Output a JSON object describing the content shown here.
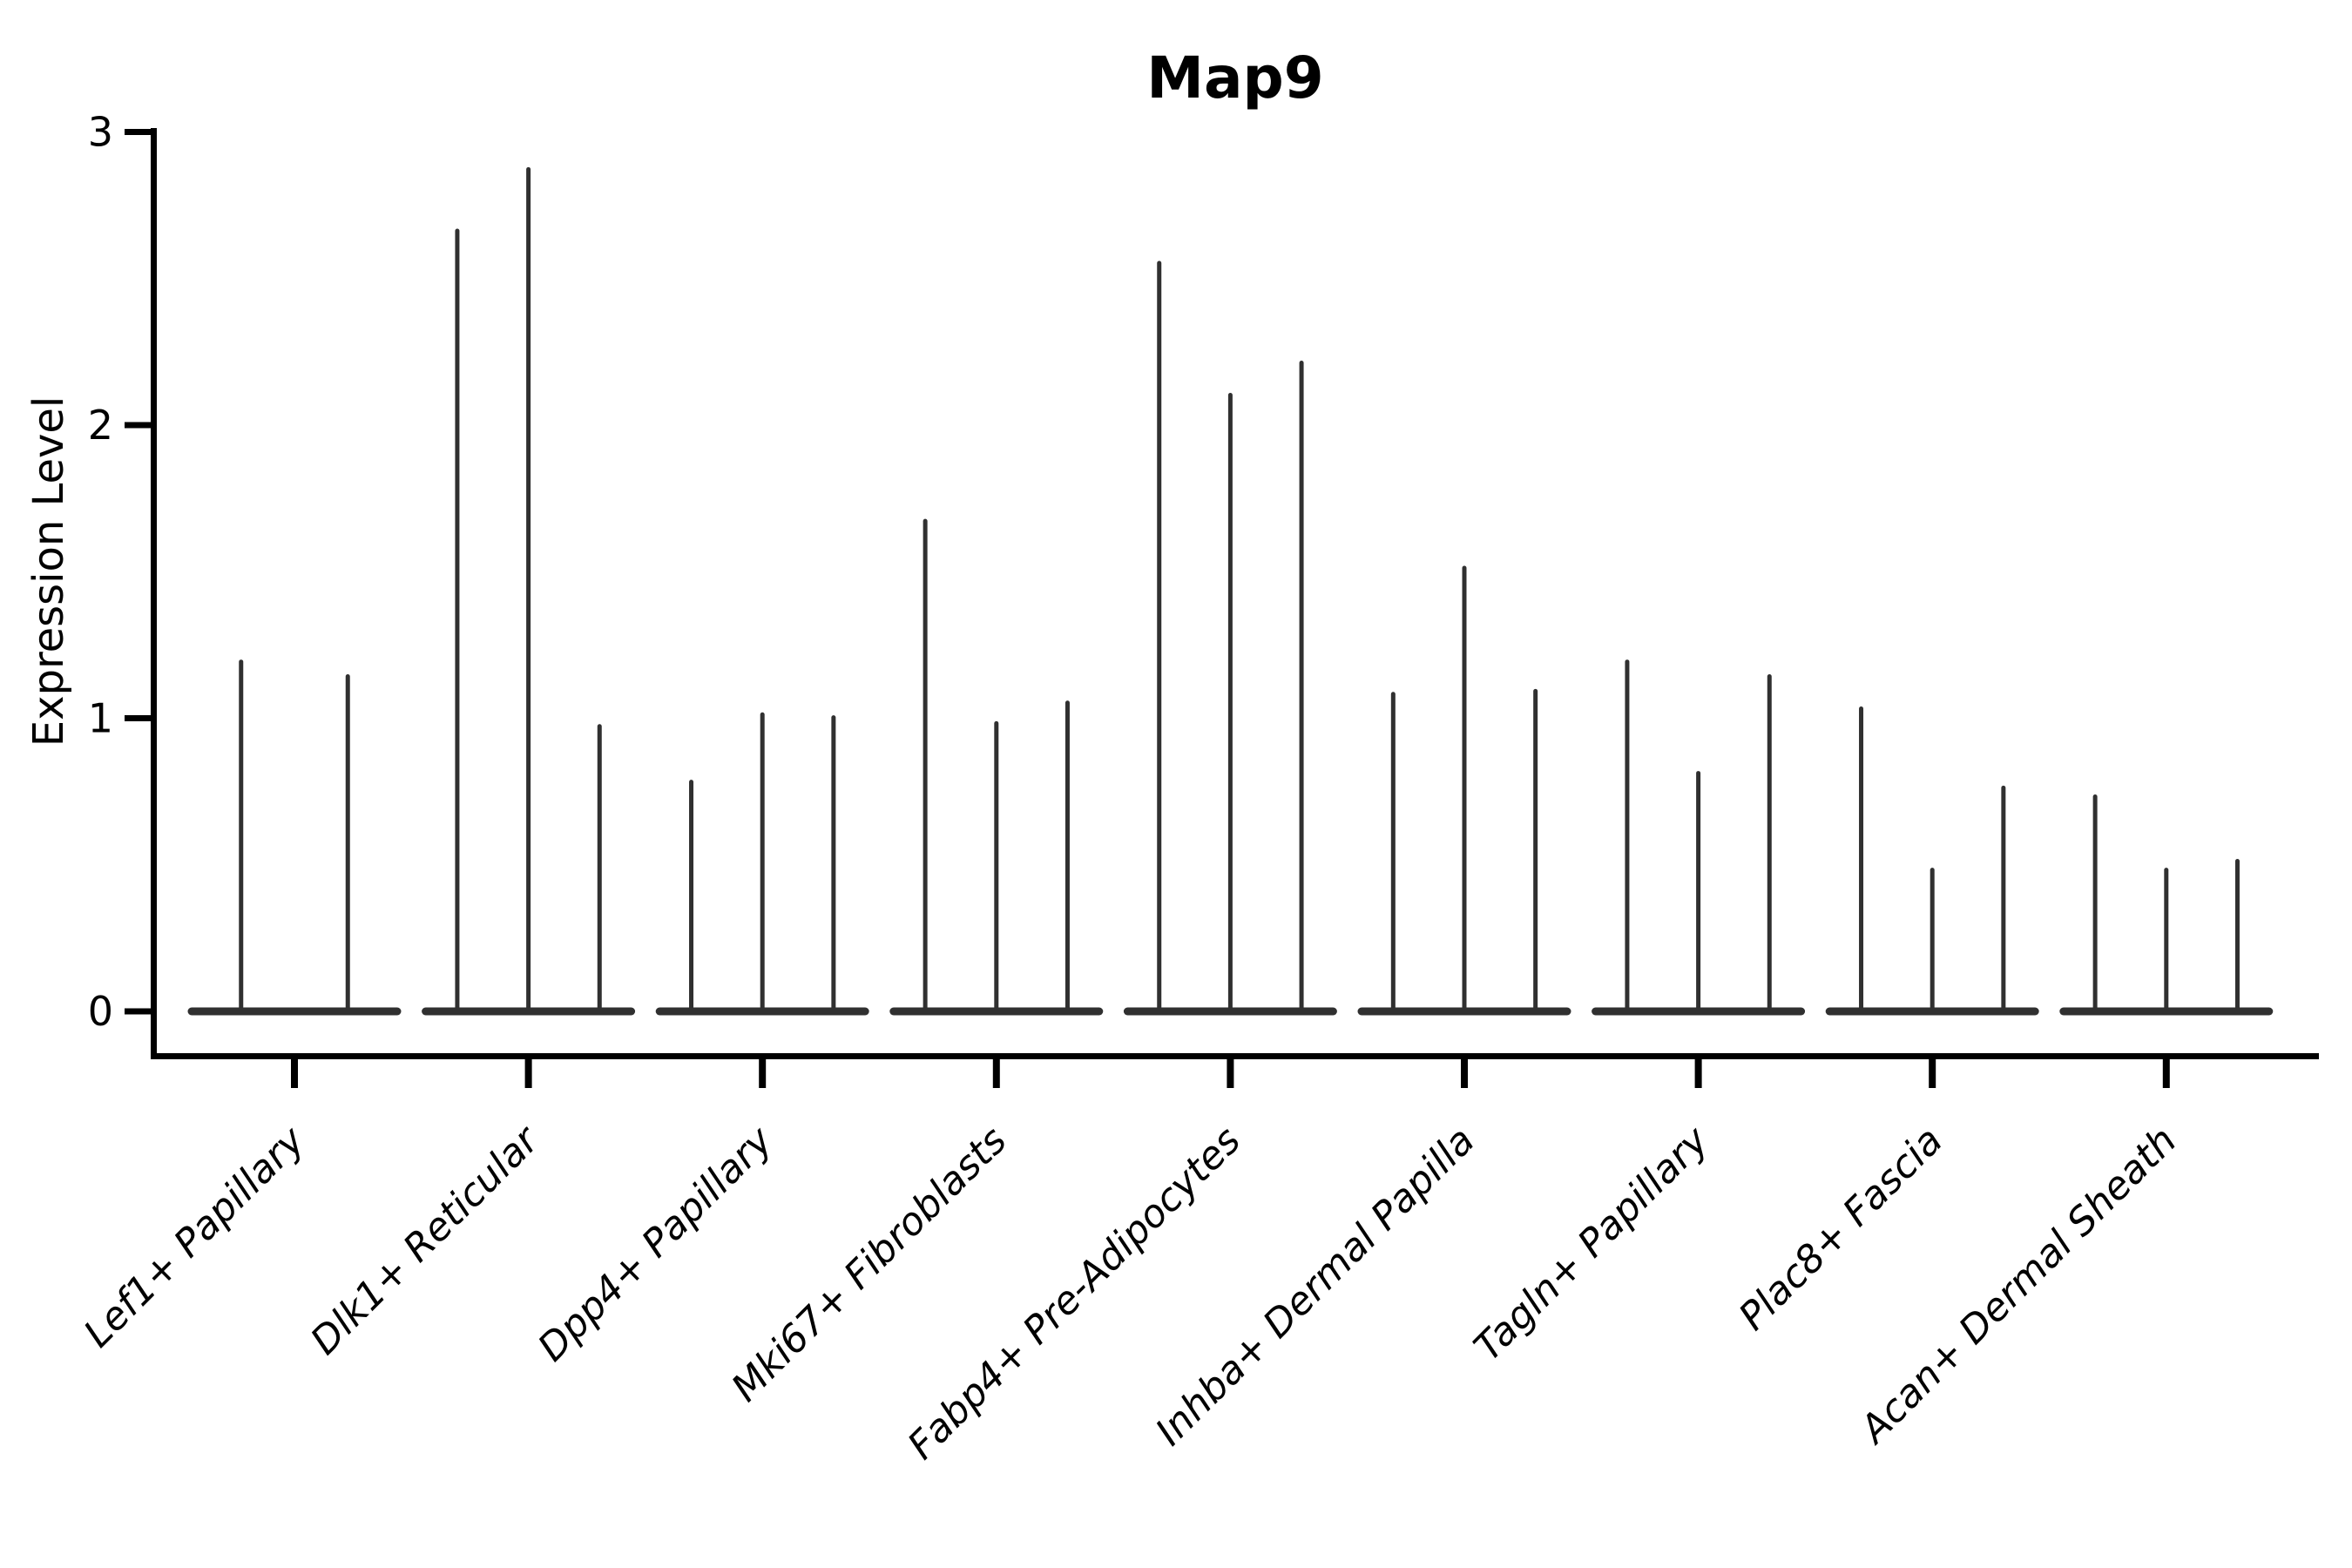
{
  "title": "Map9",
  "axes": {
    "y_label": "Expression Level",
    "y_tick_labels": [
      "0",
      "1",
      "2",
      "3"
    ],
    "x_label": ""
  },
  "colors": {
    "violin": "#303030",
    "axis": "#000000",
    "text": "#000000",
    "background": "#ffffff"
  },
  "chart_data": {
    "type": "violin",
    "title": "Map9",
    "xlabel": "",
    "ylabel": "Expression Level",
    "ylim": [
      0,
      3
    ],
    "y_ticks": [
      0,
      1,
      2,
      3
    ],
    "grid": false,
    "legend_position": "none",
    "style_note": "sparse single-cell expression violins: each violin collapses to a flat sliver at 0 with one thin vertical spike to its maximum expression value; spines on left and bottom only; x tick labels rotated 45 degrees, italic",
    "categories": [
      "Lef1+ Papillary",
      "Dlk1+ Reticular",
      "Dpp4+ Papillary",
      "Mki67+ Fibroblasts",
      "Fabp4+ Pre-Adipocytes",
      "Inhba+ Dermal Papilla",
      "Tagln+ Papillary",
      "Plac8+ Fascia",
      "Acan+ Dermal Sheath"
    ],
    "spike_maxima_per_category": [
      [
        1.2,
        1.15
      ],
      [
        2.67,
        2.88,
        0.98
      ],
      [
        0.79,
        1.02,
        1.01
      ],
      [
        1.68,
        0.99,
        1.06
      ],
      [
        2.56,
        2.11,
        2.22
      ],
      [
        1.09,
        1.52,
        1.1
      ],
      [
        1.2,
        0.82,
        1.15
      ],
      [
        1.04,
        0.49,
        0.77
      ],
      [
        0.74,
        0.49,
        0.52
      ]
    ]
  }
}
